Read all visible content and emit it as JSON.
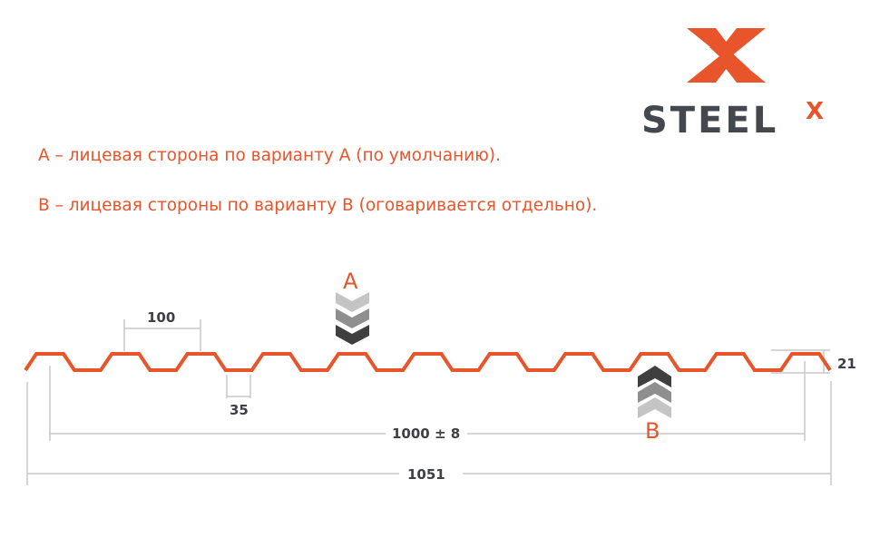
{
  "logo": {
    "text": "STEEL",
    "superscript": "X",
    "brand_color": "#e8552a",
    "text_color": "#44474d"
  },
  "notes": [
    "А – лицевая сторона по варианту А (по умолчанию).",
    "В – лицевая стороны по варианту В (оговаривается отдельно)."
  ],
  "labels": {
    "face_a": "A",
    "face_b": "B"
  },
  "dimensions": {
    "pitch": "100",
    "trough": "35",
    "height": "21",
    "useful_width": "1000 ± 8",
    "total_width": "1051"
  },
  "colors": {
    "profile": "#e8552a",
    "dim_line": "#c8c8c8",
    "text": "#3d4047"
  }
}
